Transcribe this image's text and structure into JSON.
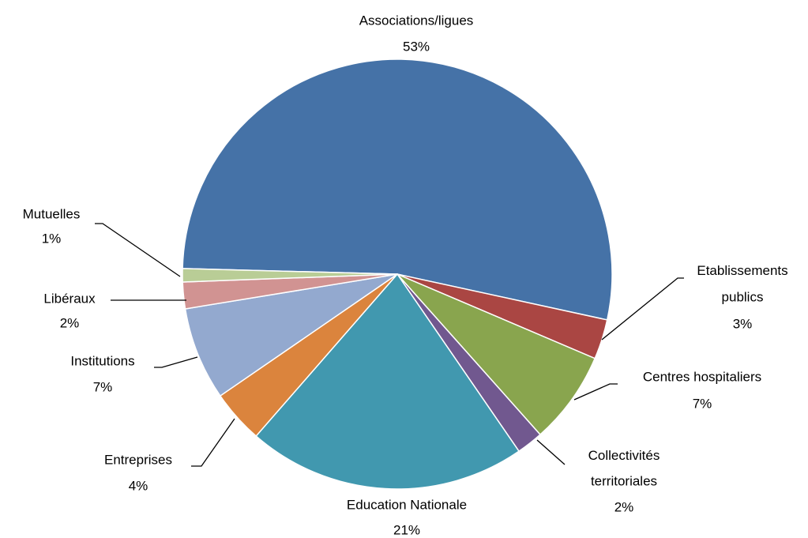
{
  "chart_data": {
    "type": "pie",
    "categories": [
      "Associations/ligues",
      "Etablissements publics",
      "Centres hospitaliers",
      "Collectivités territoriales",
      "Education Nationale",
      "Entreprises",
      "Institutions",
      "Libéraux",
      "Mutuelles"
    ],
    "values": [
      53,
      3,
      7,
      2,
      21,
      4,
      7,
      2,
      1
    ],
    "value_labels": [
      "53%",
      "3%",
      "7%",
      "2%",
      "21%",
      "4%",
      "7%",
      "2%",
      "1%"
    ],
    "colors": [
      "#4572a7",
      "#aa4643",
      "#89a54e",
      "#71588f",
      "#4198af",
      "#db843d",
      "#93a9cf",
      "#d19392",
      "#b9cd96"
    ]
  }
}
